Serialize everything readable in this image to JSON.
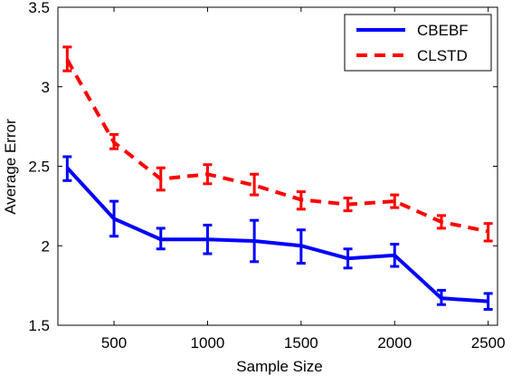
{
  "chart_data": {
    "type": "line",
    "title": "",
    "xlabel": "Sample Size",
    "ylabel": "Average Error",
    "xlim": [
      200,
      2550
    ],
    "ylim": [
      1.5,
      3.5
    ],
    "xticks": [
      500,
      1000,
      1500,
      2000,
      2500
    ],
    "yticks": [
      1.5,
      2,
      2.5,
      3,
      3.5
    ],
    "xtick_labels": [
      "500",
      "1000",
      "1500",
      "2000",
      "2500"
    ],
    "ytick_labels": [
      "1.5",
      "2",
      "2.5",
      "3",
      "3.5"
    ],
    "grid": false,
    "legend_position": "top-right",
    "x": [
      250,
      500,
      750,
      1000,
      1250,
      1500,
      1750,
      2000,
      2250,
      2500
    ],
    "series": [
      {
        "name": "CBEBF",
        "color": "#0000ff",
        "line_style": "solid",
        "values": [
          2.49,
          2.17,
          2.04,
          2.04,
          2.03,
          2.0,
          1.92,
          1.94,
          1.67,
          1.65
        ],
        "err_low": [
          2.41,
          2.06,
          1.98,
          1.95,
          1.9,
          1.89,
          1.86,
          1.87,
          1.63,
          1.6
        ],
        "err_high": [
          2.56,
          2.28,
          2.11,
          2.13,
          2.16,
          2.1,
          1.98,
          2.01,
          1.72,
          1.7
        ]
      },
      {
        "name": "CLSTD",
        "color": "#ff0000",
        "line_style": "dashed",
        "values": [
          3.17,
          2.65,
          2.42,
          2.45,
          2.38,
          2.29,
          2.26,
          2.28,
          2.15,
          2.09
        ],
        "err_low": [
          3.1,
          2.61,
          2.35,
          2.39,
          2.32,
          2.23,
          2.22,
          2.24,
          2.11,
          2.03
        ],
        "err_high": [
          3.25,
          2.7,
          2.49,
          2.51,
          2.45,
          2.34,
          2.3,
          2.32,
          2.19,
          2.14
        ]
      }
    ]
  }
}
